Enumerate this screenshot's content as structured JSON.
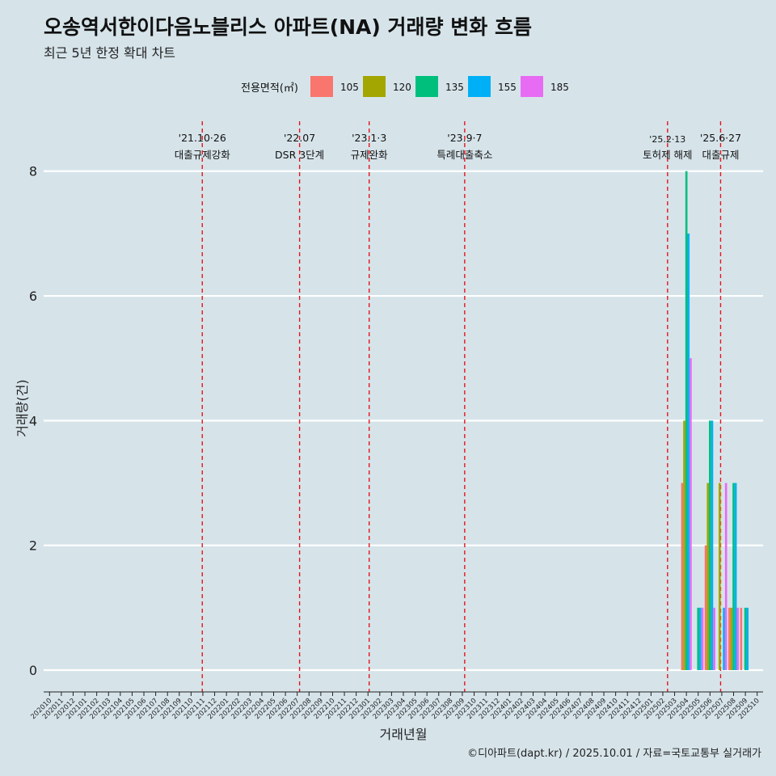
{
  "chart_data": {
    "type": "bar",
    "title": "오송역서한이다음노블리스 아파트(NA) 거래량 변화 흐름",
    "subtitle": "최근 5년 한정 확대 차트",
    "xlabel": "거래년월",
    "ylabel": "거래량(건)",
    "caption": "©디아파트(dapt.kr) / 2025.10.01 / 자료=국토교통부 실거래가",
    "ylim": [
      -0.35,
      8.8
    ],
    "yticks": [
      0,
      2,
      4,
      6,
      8
    ],
    "legend": {
      "title": "전용면적(㎡)",
      "position": "top",
      "items": [
        {
          "label": "105",
          "color": "#f8766d"
        },
        {
          "label": "120",
          "color": "#a3a500"
        },
        {
          "label": "135",
          "color": "#00bf7d"
        },
        {
          "label": "155",
          "color": "#00b0f6"
        },
        {
          "label": "185",
          "color": "#e76bf3"
        }
      ]
    },
    "categories": [
      "202010",
      "202011",
      "202012",
      "202101",
      "202102",
      "202103",
      "202104",
      "202105",
      "202106",
      "202107",
      "202108",
      "202109",
      "202110",
      "202111",
      "202112",
      "202201",
      "202202",
      "202203",
      "202204",
      "202205",
      "202206",
      "202207",
      "202208",
      "202209",
      "202210",
      "202211",
      "202212",
      "202301",
      "202302",
      "202303",
      "202304",
      "202305",
      "202306",
      "202307",
      "202308",
      "202309",
      "202310",
      "202311",
      "202312",
      "202401",
      "202402",
      "202403",
      "202404",
      "202405",
      "202406",
      "202407",
      "202408",
      "202409",
      "202410",
      "202411",
      "202412",
      "202501",
      "202502",
      "202503",
      "202504",
      "202505",
      "202506",
      "202507",
      "202508",
      "202509",
      "202510"
    ],
    "series": [
      {
        "name": "105",
        "color": "#f8766d",
        "points": [
          {
            "x": "202504",
            "y": 3
          },
          {
            "x": "202506",
            "y": 2
          },
          {
            "x": "202508",
            "y": 1
          },
          {
            "x": "202509",
            "y": 1
          }
        ]
      },
      {
        "name": "120",
        "color": "#a3a500",
        "points": [
          {
            "x": "202504",
            "y": 4
          },
          {
            "x": "202506",
            "y": 3
          },
          {
            "x": "202507",
            "y": 3
          },
          {
            "x": "202508",
            "y": 1
          }
        ]
      },
      {
        "name": "135",
        "color": "#00bf7d",
        "points": [
          {
            "x": "202504",
            "y": 8
          },
          {
            "x": "202505",
            "y": 1
          },
          {
            "x": "202506",
            "y": 4
          },
          {
            "x": "202508",
            "y": 3
          },
          {
            "x": "202509",
            "y": 1
          }
        ]
      },
      {
        "name": "155",
        "color": "#00b0f6",
        "points": [
          {
            "x": "202504",
            "y": 7
          },
          {
            "x": "202505",
            "y": 1
          },
          {
            "x": "202506",
            "y": 4
          },
          {
            "x": "202507",
            "y": 1
          },
          {
            "x": "202508",
            "y": 3
          },
          {
            "x": "202509",
            "y": 1
          }
        ]
      },
      {
        "name": "185",
        "color": "#e76bf3",
        "points": [
          {
            "x": "202504",
            "y": 5
          },
          {
            "x": "202505",
            "y": 1
          },
          {
            "x": "202506",
            "y": 1
          },
          {
            "x": "202507",
            "y": 3
          },
          {
            "x": "202508",
            "y": 1
          }
        ]
      }
    ],
    "annotations": [
      {
        "x": 12.95,
        "date": "'21.10·26",
        "label": "대출규제강화",
        "small": false
      },
      {
        "x": 21.2,
        "date": "'22.07",
        "label": "DSR 3단계",
        "small": false
      },
      {
        "x": 27.1,
        "date": "'23.1·3",
        "label": "규제완화",
        "small": false
      },
      {
        "x": 35.2,
        "date": "'23.9·7",
        "label": "특례대출축소",
        "small": false
      },
      {
        "x": 52.4,
        "date": "'25.2·13",
        "label": "토허제 해제",
        "small": true
      },
      {
        "x": 56.9,
        "date": "'25.6·27",
        "label": "대출규제",
        "small": false
      }
    ]
  }
}
